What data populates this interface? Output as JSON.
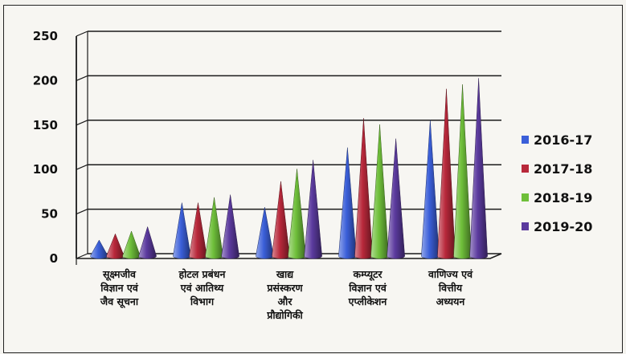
{
  "chart_data": {
    "type": "bar",
    "style": "3d-cone",
    "categories": [
      "सूक्ष्मजीव विज्ञान एवं जैव सूचना",
      "होटल प्रबंधन एवं आतिथ्य विभाग",
      "खाद्य प्रसंस्करण और प्रौद्योगिकी",
      "कम्प्यूटर विज्ञान एवं एप्लीकेशन",
      "वाणिज्य एवं वित्तीय अध्ययन"
    ],
    "category_lines": [
      [
        "सूक्ष्मजीव",
        "विज्ञान एवं",
        "जैव सूचना"
      ],
      [
        "होटल प्रबंधन",
        "एवं आतिथ्य",
        "विभाग"
      ],
      [
        "खाद्य",
        "प्रसंस्करण",
        "और",
        "प्रौद्योगिकी"
      ],
      [
        "कम्प्यूटर",
        "विज्ञान एवं",
        "एप्लीकेशन"
      ],
      [
        "वाणिज्य एवं",
        "वित्तीय",
        "अध्ययन"
      ]
    ],
    "series": [
      {
        "name": "2016-17",
        "color": "#3b5fd9",
        "values": [
          18,
          60,
          55,
          122,
          153
        ]
      },
      {
        "name": "2017-18",
        "color": "#b8283a",
        "values": [
          25,
          60,
          84,
          155,
          188
        ]
      },
      {
        "name": "2018-19",
        "color": "#6fbf3a",
        "values": [
          28,
          66,
          98,
          148,
          193
        ]
      },
      {
        "name": "2019-20",
        "color": "#5b3a9e",
        "values": [
          33,
          69,
          108,
          132,
          200
        ]
      }
    ],
    "ylim": [
      0,
      250
    ],
    "yticks": [
      "0",
      "50",
      "100",
      "150",
      "200",
      "250"
    ],
    "grid": true,
    "legend": "right"
  }
}
